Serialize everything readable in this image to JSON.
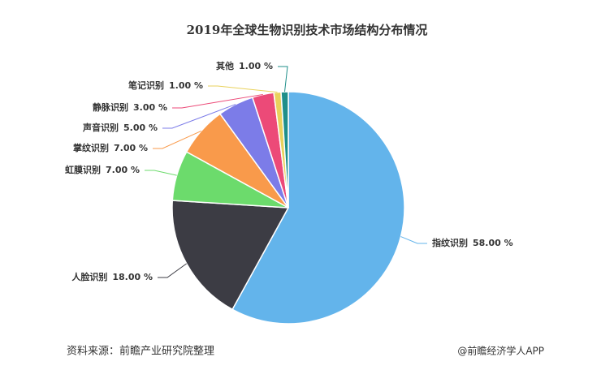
{
  "chart_data": {
    "type": "pie",
    "title": "2019年全球生物识别技术市场结构分布情况",
    "categories": [
      "指纹识别",
      "人脸识别",
      "虹膜识别",
      "掌纹识别",
      "声音识别",
      "静脉识别",
      "笔记识别",
      "其他"
    ],
    "values": [
      58,
      18,
      7,
      7,
      5,
      3,
      1,
      1
    ],
    "value_labels": [
      "58.00 %",
      "18.00 %",
      "7.00 %",
      "7.00 %",
      "5.00 %",
      "3.00 %",
      "1.00 %",
      "1.00 %"
    ],
    "colors": [
      "#63b4eb",
      "#3c3c44",
      "#6cdb6c",
      "#f99a4b",
      "#7c7ce8",
      "#ec4a78",
      "#e9d25c",
      "#1f8f8a"
    ],
    "source": "资料来源：前瞻产业研究院整理",
    "credit": "@前瞻经济学人APP"
  }
}
